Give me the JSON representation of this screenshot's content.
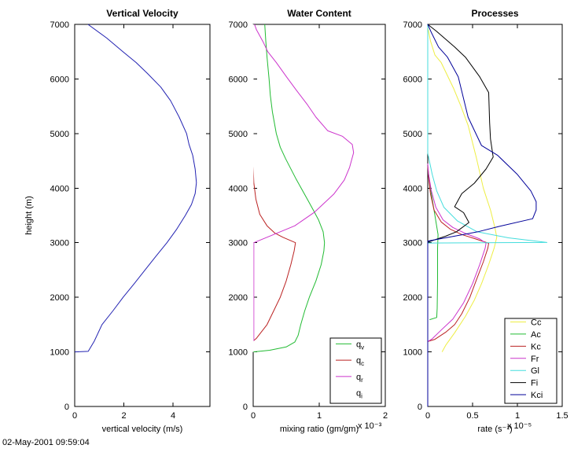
{
  "figure": {
    "timestamp": "02-May-2001 09:59:04",
    "background": "#ffffff"
  },
  "chart_data": [
    {
      "type": "line",
      "title": "Vertical Velocity",
      "xlabel": "vertical velocity (m/s)",
      "ylabel": "height (m)",
      "xlim": [
        0,
        5.5
      ],
      "ylim": [
        0,
        7000
      ],
      "xticks": [
        0,
        2,
        4
      ],
      "yticks": [
        0,
        1000,
        2000,
        3000,
        4000,
        5000,
        6000,
        7000
      ],
      "grid": false,
      "series": [
        {
          "name": "w",
          "color": "#2222b2",
          "points": [
            [
              0,
              1000
            ],
            [
              0.55,
              1010
            ],
            [
              0.8,
              1200
            ],
            [
              1.11,
              1500
            ],
            [
              1.55,
              1750
            ],
            [
              1.97,
              2000
            ],
            [
              2.42,
              2250
            ],
            [
              2.86,
              2500
            ],
            [
              3.3,
              2750
            ],
            [
              3.75,
              3000
            ],
            [
              4.15,
              3250
            ],
            [
              4.5,
              3500
            ],
            [
              4.75,
              3700
            ],
            [
              4.9,
              3900
            ],
            [
              4.95,
              4100
            ],
            [
              4.9,
              4350
            ],
            [
              4.8,
              4600
            ],
            [
              4.65,
              4800
            ],
            [
              4.55,
              5000
            ],
            [
              4.25,
              5300
            ],
            [
              3.9,
              5600
            ],
            [
              3.5,
              5850
            ],
            [
              2.96,
              6100
            ],
            [
              2.5,
              6300
            ],
            [
              1.96,
              6500
            ],
            [
              1.3,
              6750
            ],
            [
              0.54,
              7000
            ]
          ]
        }
      ]
    },
    {
      "type": "line",
      "title": "Water Content",
      "xlabel": "mixing ratio (gm/gm)",
      "x_multiplier": "x 10⁻³",
      "xlim": [
        0,
        2
      ],
      "ylim": [
        0,
        7000
      ],
      "xticks": [
        0,
        1,
        2
      ],
      "yticks": [
        0,
        1000,
        2000,
        3000,
        4000,
        5000,
        6000,
        7000
      ],
      "grid": false,
      "legend_position": "lower right",
      "legend": [
        {
          "base": "q",
          "sub": "v",
          "color": "#22bb33"
        },
        {
          "base": "q",
          "sub": "c",
          "color": "#bb2222"
        },
        {
          "base": "q",
          "sub": "r",
          "color": "#cc33cc"
        },
        {
          "base": "q",
          "sub": "i",
          "color": "#ffffff"
        }
      ],
      "series": [
        {
          "name": "qv",
          "color": "#22bb33",
          "points": [
            [
              0,
              1000
            ],
            [
              0.25,
              1030
            ],
            [
              0.5,
              1090
            ],
            [
              0.63,
              1180
            ],
            [
              0.68,
              1300
            ],
            [
              0.72,
              1500
            ],
            [
              0.78,
              1750
            ],
            [
              0.85,
              2000
            ],
            [
              0.95,
              2300
            ],
            [
              1.03,
              2600
            ],
            [
              1.07,
              2850
            ],
            [
              1.08,
              3000
            ],
            [
              1.06,
              3200
            ],
            [
              0.99,
              3415
            ],
            [
              0.91,
              3600
            ],
            [
              0.83,
              3775
            ],
            [
              0.65,
              4165
            ],
            [
              0.49,
              4540
            ],
            [
              0.41,
              4750
            ],
            [
              0.35,
              5000
            ],
            [
              0.29,
              5400
            ],
            [
              0.26,
              5700
            ],
            [
              0.24,
              6000
            ],
            [
              0.21,
              6400
            ],
            [
              0.19,
              6700
            ],
            [
              0.175,
              7000
            ]
          ]
        },
        {
          "name": "qc",
          "color": "#bb2222",
          "points": [
            [
              0,
              1200
            ],
            [
              0.05,
              1250
            ],
            [
              0.21,
              1500
            ],
            [
              0.31,
              1750
            ],
            [
              0.41,
              2000
            ],
            [
              0.5,
              2300
            ],
            [
              0.57,
              2600
            ],
            [
              0.62,
              2850
            ],
            [
              0.64,
              3000
            ],
            [
              0.45,
              3100
            ],
            [
              0.33,
              3175
            ],
            [
              0.21,
              3310
            ],
            [
              0.1,
              3520
            ],
            [
              0.04,
              3800
            ],
            [
              0.01,
              4100
            ],
            [
              0,
              4400
            ],
            [
              0,
              7000
            ]
          ]
        },
        {
          "name": "qr",
          "color": "#cc33cc",
          "points": [
            [
              0.01,
              1200
            ],
            [
              0.01,
              3000
            ],
            [
              0.27,
              3130
            ],
            [
              0.63,
              3310
            ],
            [
              0.93,
              3560
            ],
            [
              1.22,
              3890
            ],
            [
              1.38,
              4150
            ],
            [
              1.46,
              4380
            ],
            [
              1.52,
              4650
            ],
            [
              1.5,
              4800
            ],
            [
              1.35,
              4950
            ],
            [
              1.13,
              5050
            ],
            [
              0.95,
              5300
            ],
            [
              0.82,
              5530
            ],
            [
              0.65,
              5800
            ],
            [
              0.51,
              6030
            ],
            [
              0.35,
              6300
            ],
            [
              0.22,
              6500
            ],
            [
              0.15,
              6680
            ],
            [
              0.05,
              6900
            ],
            [
              0.02,
              7000
            ]
          ]
        },
        {
          "name": "qi",
          "color": "#ffffff",
          "points": [
            [
              0,
              1000
            ],
            [
              0,
              7000
            ]
          ]
        }
      ]
    },
    {
      "type": "line",
      "title": "Processes",
      "xlabel": "rate (s⁻¹)",
      "x_multiplier": "x 10⁻⁵",
      "xlim": [
        0,
        1.5
      ],
      "ylim": [
        0,
        7000
      ],
      "xticks": [
        0,
        0.5,
        1,
        1.5
      ],
      "yticks": [
        0,
        1000,
        2000,
        3000,
        4000,
        5000,
        6000,
        7000
      ],
      "grid": false,
      "legend_position": "lower right",
      "legend": [
        {
          "base": "Cc",
          "sub": "",
          "color": "#eeee44"
        },
        {
          "base": "Ac",
          "sub": "",
          "color": "#22bb33"
        },
        {
          "base": "Kc",
          "sub": "",
          "color": "#bb2222"
        },
        {
          "base": "Fr",
          "sub": "",
          "color": "#cc33cc"
        },
        {
          "base": "Gl",
          "sub": "",
          "color": "#44dddd"
        },
        {
          "base": "Fi",
          "sub": "",
          "color": "#000000"
        },
        {
          "base": "Kci",
          "sub": "",
          "color": "#000099"
        }
      ],
      "series": [
        {
          "name": "Cc",
          "color": "#eeee44",
          "points": [
            [
              0.16,
              1000
            ],
            [
              0.2,
              1120
            ],
            [
              0.3,
              1350
            ],
            [
              0.42,
              1650
            ],
            [
              0.52,
              1950
            ],
            [
              0.6,
              2250
            ],
            [
              0.68,
              2600
            ],
            [
              0.74,
              2900
            ],
            [
              0.77,
              3100
            ],
            [
              0.75,
              3270
            ],
            [
              0.7,
              3600
            ],
            [
              0.66,
              3800
            ],
            [
              0.62,
              4000
            ],
            [
              0.54,
              4570
            ],
            [
              0.45,
              5150
            ],
            [
              0.37,
              5500
            ],
            [
              0.29,
              5820
            ],
            [
              0.15,
              6300
            ],
            [
              0.08,
              6440
            ],
            [
              0.03,
              6700
            ],
            [
              0,
              6950
            ]
          ]
        },
        {
          "name": "Ac",
          "color": "#22bb33",
          "points": [
            [
              0.02,
              1590
            ],
            [
              0.1,
              1630
            ],
            [
              0.105,
              1800
            ],
            [
              0.11,
              2300
            ],
            [
              0.11,
              2900
            ],
            [
              0.115,
              3150
            ],
            [
              0.1,
              3300
            ],
            [
              0.06,
              3700
            ],
            [
              0.03,
              4000
            ],
            [
              0.01,
              4250
            ],
            [
              0,
              4400
            ]
          ]
        },
        {
          "name": "Kc",
          "color": "#bb2222",
          "points": [
            [
              0,
              1190
            ],
            [
              0.08,
              1230
            ],
            [
              0.2,
              1360
            ],
            [
              0.3,
              1500
            ],
            [
              0.38,
              1700
            ],
            [
              0.47,
              2000
            ],
            [
              0.55,
              2350
            ],
            [
              0.62,
              2650
            ],
            [
              0.67,
              2900
            ],
            [
              0.68,
              2990
            ],
            [
              0.55,
              3060
            ],
            [
              0.38,
              3150
            ],
            [
              0.25,
              3250
            ],
            [
              0.15,
              3380
            ],
            [
              0.07,
              3600
            ],
            [
              0.03,
              3900
            ],
            [
              0.01,
              4200
            ],
            [
              0,
              4400
            ]
          ]
        },
        {
          "name": "Fr",
          "color": "#cc33cc",
          "points": [
            [
              0,
              1190
            ],
            [
              0.05,
              1240
            ],
            [
              0.15,
              1400
            ],
            [
              0.28,
              1600
            ],
            [
              0.4,
              1900
            ],
            [
              0.5,
              2250
            ],
            [
              0.58,
              2600
            ],
            [
              0.64,
              2900
            ],
            [
              0.65,
              2990
            ],
            [
              0.58,
              3070
            ],
            [
              0.42,
              3170
            ],
            [
              0.28,
              3280
            ],
            [
              0.17,
              3420
            ],
            [
              0.09,
              3650
            ],
            [
              0.04,
              3950
            ],
            [
              0.01,
              4250
            ],
            [
              0,
              4450
            ]
          ]
        },
        {
          "name": "Gl",
          "color": "#44dddd",
          "points": [
            [
              0,
              2995
            ],
            [
              1.33,
              3005
            ],
            [
              0.9,
              3090
            ],
            [
              0.55,
              3200
            ],
            [
              0.33,
              3400
            ],
            [
              0.18,
              3650
            ],
            [
              0.1,
              3950
            ],
            [
              0.05,
              4250
            ],
            [
              0,
              4640
            ],
            [
              0,
              7000
            ]
          ]
        },
        {
          "name": "Fi",
          "color": "#000000",
          "points": [
            [
              0,
              3010
            ],
            [
              0.2,
              3120
            ],
            [
              0.32,
              3200
            ],
            [
              0.46,
              3370
            ],
            [
              0.4,
              3550
            ],
            [
              0.3,
              3660
            ],
            [
              0.38,
              3900
            ],
            [
              0.52,
              4090
            ],
            [
              0.65,
              4350
            ],
            [
              0.73,
              4570
            ],
            [
              0.7,
              4900
            ],
            [
              0.69,
              5200
            ],
            [
              0.68,
              5750
            ],
            [
              0.58,
              6040
            ],
            [
              0.42,
              6400
            ],
            [
              0.3,
              6585
            ],
            [
              0.1,
              6870
            ],
            [
              0,
              7000
            ]
          ]
        },
        {
          "name": "Kci",
          "color": "#000099",
          "points": [
            [
              0,
              0
            ],
            [
              0,
              3030
            ],
            [
              0.4,
              3150
            ],
            [
              0.56,
              3200
            ],
            [
              0.8,
              3300
            ],
            [
              1.17,
              3440
            ],
            [
              1.21,
              3600
            ],
            [
              1.21,
              3750
            ],
            [
              1.15,
              3950
            ],
            [
              1,
              4250
            ],
            [
              0.78,
              4600
            ],
            [
              0.6,
              4780
            ],
            [
              0.45,
              5300
            ],
            [
              0.34,
              6040
            ],
            [
              0.22,
              6400
            ],
            [
              0.12,
              6585
            ],
            [
              0.04,
              6850
            ],
            [
              0,
              7000
            ]
          ]
        }
      ]
    }
  ]
}
